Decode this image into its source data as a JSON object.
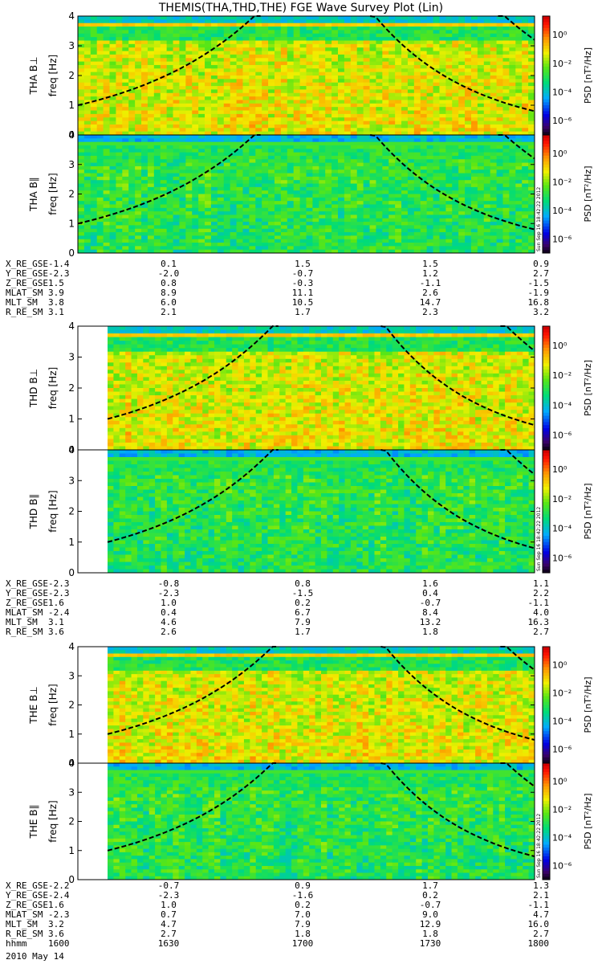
{
  "title": "THEMIS(THA,THD,THE) FGE Wave Survey Plot (Lin)",
  "colorbar": {
    "label": "PSD [nT²/Hz]",
    "ticks": [
      "10⁰",
      "10⁻²",
      "10⁻⁴",
      "10⁻⁶"
    ],
    "tick_values": [
      0,
      -2,
      -4,
      -6
    ],
    "range_log10": [
      -7,
      1.3
    ],
    "stamp": "Sun Sep 16 18:42:22 2012"
  },
  "chart_data": [
    {
      "type": "heatmap",
      "title": "THEMIS(THA,THD,THE) FGE Wave Survey Plot (Lin)",
      "x_range": [
        "1600",
        "1800"
      ],
      "ylim": [
        0,
        4
      ],
      "yticks": [
        0,
        1,
        2,
        3,
        4
      ],
      "panels": [
        {
          "probe": "THA",
          "component": "B⊥",
          "ylabel": "THA B⊥",
          "yunit": "freq [Hz]",
          "data_start_frac": 0.0
        },
        {
          "probe": "THA",
          "component": "B∥",
          "ylabel": "THA B∥",
          "yunit": "freq [Hz]",
          "data_start_frac": 0.0
        },
        {
          "probe": "THD",
          "component": "B⊥",
          "ylabel": "THD B⊥",
          "yunit": "freq [Hz]",
          "data_start_frac": 0.0
        },
        {
          "probe": "THD",
          "component": "B∥",
          "ylabel": "THD B∥",
          "yunit": "freq [Hz]",
          "data_start_frac": 0.0
        },
        {
          "probe": "THE",
          "component": "B⊥",
          "ylabel": "THE B⊥",
          "yunit": "freq [Hz]",
          "data_start_frac": 0.0
        },
        {
          "probe": "THE",
          "component": "B∥",
          "ylabel": "THE B∥",
          "yunit": "freq [Hz]",
          "data_start_frac": 0.0
        }
      ]
    }
  ],
  "orbit_tables": [
    {
      "probe": "THA",
      "rows": [
        {
          "label": "X_RE_GSE",
          "values": [
            "-1.4",
            "0.1",
            "1.5",
            "1.5",
            "0.9"
          ]
        },
        {
          "label": "Y_RE_GSE",
          "values": [
            "-2.3",
            "-2.0",
            "-0.7",
            "1.2",
            "2.7"
          ]
        },
        {
          "label": "Z_RE_GSE",
          "values": [
            "1.5",
            "0.8",
            "-0.3",
            "-1.1",
            "-1.5"
          ]
        },
        {
          "label": "MLAT_SM",
          "values": [
            "3.9",
            "8.9",
            "11.1",
            "2.6",
            "-1.9"
          ]
        },
        {
          "label": "MLT_SM",
          "values": [
            "3.8",
            "6.0",
            "10.5",
            "14.7",
            "16.8"
          ]
        },
        {
          "label": "R_RE_SM",
          "values": [
            "3.1",
            "2.1",
            "1.7",
            "2.3",
            "3.2"
          ]
        }
      ]
    },
    {
      "probe": "THD",
      "rows": [
        {
          "label": "X_RE_GSE",
          "values": [
            "-2.3",
            "-0.8",
            "0.8",
            "1.6",
            "1.1"
          ]
        },
        {
          "label": "Y_RE_GSE",
          "values": [
            "-2.3",
            "-2.3",
            "-1.5",
            "0.4",
            "2.2"
          ]
        },
        {
          "label": "Z_RE_GSE",
          "values": [
            "1.6",
            "1.0",
            "0.2",
            "-0.7",
            "-1.1"
          ]
        },
        {
          "label": "MLAT_SM",
          "values": [
            "-2.4",
            "0.4",
            "6.7",
            "8.4",
            "4.0"
          ]
        },
        {
          "label": "MLT_SM",
          "values": [
            "3.1",
            "4.6",
            "7.9",
            "13.2",
            "16.3"
          ]
        },
        {
          "label": "R_RE_SM",
          "values": [
            "3.6",
            "2.6",
            "1.7",
            "1.8",
            "2.7"
          ]
        }
      ]
    },
    {
      "probe": "THE",
      "rows": [
        {
          "label": "X_RE_GSE",
          "values": [
            "-2.2",
            "-0.7",
            "0.9",
            "1.7",
            "1.3"
          ]
        },
        {
          "label": "Y_RE_GSE",
          "values": [
            "-2.4",
            "-2.3",
            "-1.6",
            "0.2",
            "2.1"
          ]
        },
        {
          "label": "Z_RE_GSE",
          "values": [
            "1.6",
            "1.0",
            "0.2",
            "-0.7",
            "-1.1"
          ]
        },
        {
          "label": "MLAT_SM",
          "values": [
            "-2.3",
            "0.7",
            "7.0",
            "9.0",
            "4.7"
          ]
        },
        {
          "label": "MLT_SM",
          "values": [
            "3.2",
            "4.7",
            "7.9",
            "12.9",
            "16.0"
          ]
        },
        {
          "label": "R_RE_SM",
          "values": [
            "3.6",
            "2.7",
            "1.8",
            "1.8",
            "2.7"
          ]
        },
        {
          "label": "hhmm",
          "values": [
            "1600",
            "1630",
            "1700",
            "1730",
            "1800"
          ]
        }
      ]
    }
  ],
  "footer_date": "2010 May 14"
}
